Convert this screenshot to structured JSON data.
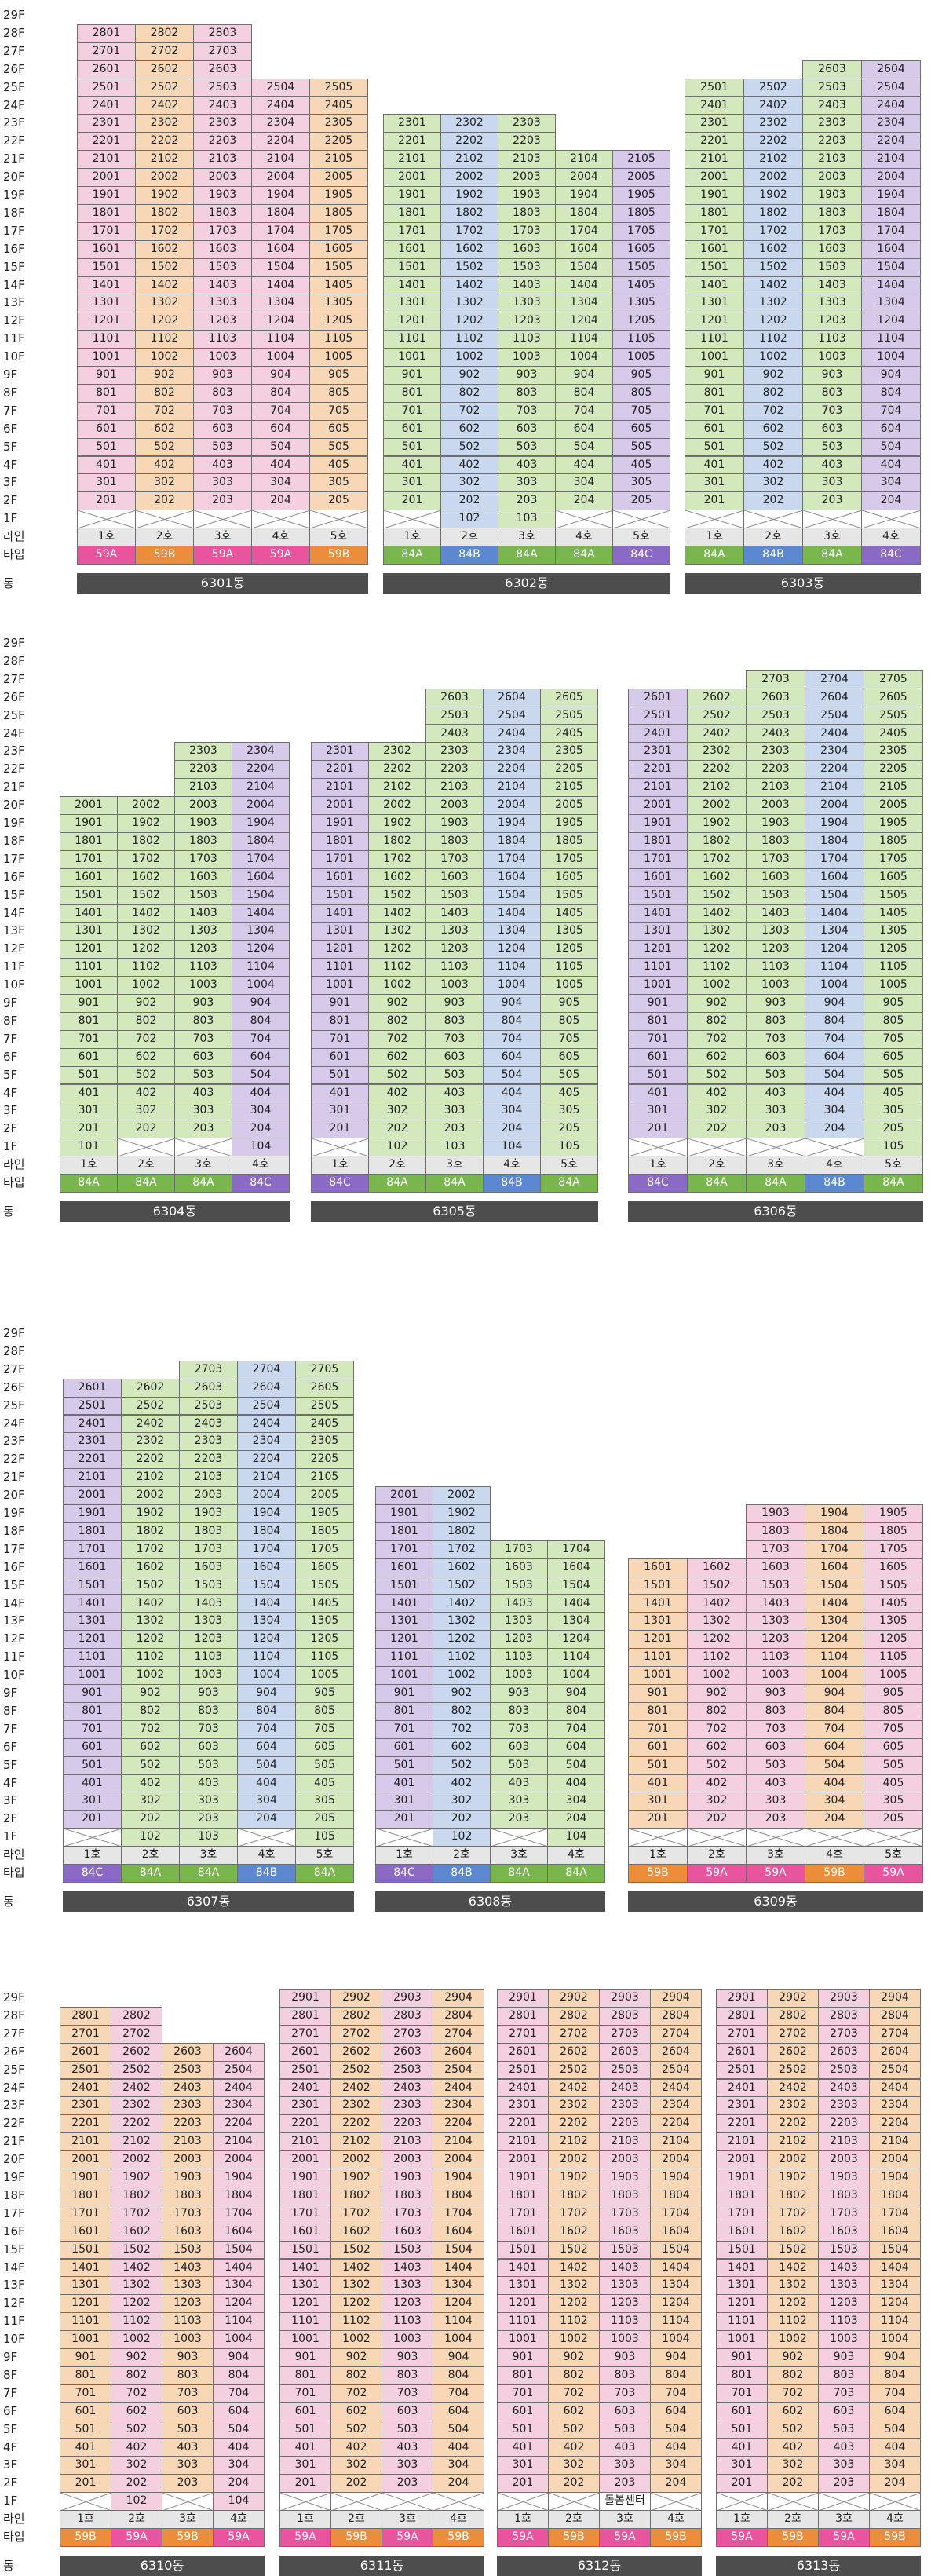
{
  "labels": {
    "line": "라인",
    "type": "타입",
    "dong": "동"
  },
  "colors": {
    "59A": "#f4cfe0",
    "59B": "#f8d7b7",
    "84A": "#d3e8bd",
    "84B": "#c9d8ef",
    "84C": "#d7c9ea",
    "t59A": "#e8559e",
    "t59B": "#ec8d3c",
    "t84A": "#79b64e",
    "t84B": "#5b88d1",
    "t84C": "#8a6ac4",
    "empty": "#ffffff"
  },
  "sections": [
    {
      "floor_labels": [
        "29F",
        "28F",
        "27F",
        "26F",
        "25F",
        "24F",
        "23F",
        "22F",
        "21F",
        "20F",
        "19F",
        "18F",
        "17F",
        "16F",
        "15F",
        "14F",
        "13F",
        "12F",
        "11F",
        "10F",
        "9F",
        "8F",
        "7F",
        "6F",
        "5F",
        "4F",
        "3F",
        "2F",
        "1F"
      ],
      "buildings": [
        {
          "name": "6301동",
          "line_labels": [
            "1호",
            "2호",
            "3호",
            "4호",
            "5호"
          ],
          "types": [
            "59A",
            "59B",
            "59A",
            "59A",
            "59B"
          ],
          "top_floors": [
            28,
            28,
            28,
            25,
            25
          ],
          "bottom_floor": 2,
          "first_floor": [
            null,
            null,
            null,
            null,
            null
          ]
        },
        {
          "name": "6302동",
          "line_labels": [
            "1호",
            "2호",
            "3호",
            "4호",
            "5호"
          ],
          "types": [
            "84A",
            "84B",
            "84A",
            "84A",
            "84C"
          ],
          "top_floors": [
            23,
            23,
            23,
            21,
            21
          ],
          "bottom_floor": 2,
          "first_floor": [
            null,
            "102",
            "103",
            null,
            null
          ]
        },
        {
          "name": "6303동",
          "line_labels": [
            "1호",
            "2호",
            "3호",
            "4호"
          ],
          "types": [
            "84A",
            "84B",
            "84A",
            "84C"
          ],
          "top_floors": [
            25,
            25,
            26,
            26
          ],
          "bottom_floor": 2,
          "first_floor": [
            null,
            null,
            null,
            null
          ]
        }
      ]
    },
    {
      "floor_labels": [
        "29F",
        "28F",
        "27F",
        "26F",
        "25F",
        "24F",
        "23F",
        "22F",
        "21F",
        "20F",
        "19F",
        "18F",
        "17F",
        "16F",
        "15F",
        "14F",
        "13F",
        "12F",
        "11F",
        "10F",
        "9F",
        "8F",
        "7F",
        "6F",
        "5F",
        "4F",
        "3F",
        "2F",
        "1F"
      ],
      "buildings": [
        {
          "name": "6304동",
          "line_labels": [
            "1호",
            "2호",
            "3호",
            "4호"
          ],
          "types": [
            "84A",
            "84A",
            "84A",
            "84C"
          ],
          "top_floors": [
            20,
            20,
            23,
            23
          ],
          "bottom_floor": 2,
          "first_floor": [
            "101",
            null,
            null,
            "104"
          ]
        },
        {
          "name": "6305동",
          "line_labels": [
            "1호",
            "2호",
            "3호",
            "4호",
            "5호"
          ],
          "types": [
            "84C",
            "84A",
            "84A",
            "84B",
            "84A"
          ],
          "top_floors": [
            23,
            23,
            26,
            26,
            26
          ],
          "bottom_floor": 2,
          "first_floor": [
            null,
            "102",
            "103",
            "104",
            "105"
          ]
        },
        {
          "name": "6306동",
          "line_labels": [
            "1호",
            "2호",
            "3호",
            "4호",
            "5호"
          ],
          "types": [
            "84C",
            "84A",
            "84A",
            "84B",
            "84A"
          ],
          "top_floors": [
            26,
            26,
            27,
            27,
            27
          ],
          "bottom_floor": 2,
          "first_floor": [
            null,
            null,
            null,
            null,
            "105"
          ]
        }
      ]
    },
    {
      "floor_labels": [
        "29F",
        "28F",
        "27F",
        "26F",
        "25F",
        "24F",
        "23F",
        "22F",
        "21F",
        "20F",
        "19F",
        "18F",
        "17F",
        "16F",
        "15F",
        "14F",
        "13F",
        "12F",
        "11F",
        "10F",
        "9F",
        "8F",
        "7F",
        "6F",
        "5F",
        "4F",
        "3F",
        "2F",
        "1F"
      ],
      "buildings": [
        {
          "name": "6307동",
          "line_labels": [
            "1호",
            "2호",
            "3호",
            "4호",
            "5호"
          ],
          "types": [
            "84C",
            "84A",
            "84A",
            "84B",
            "84A"
          ],
          "top_floors": [
            26,
            26,
            27,
            27,
            27
          ],
          "bottom_floor": 2,
          "first_floor": [
            null,
            "102",
            "103",
            null,
            "105"
          ]
        },
        {
          "name": "6308동",
          "line_labels": [
            "1호",
            "2호",
            "3호",
            "4호"
          ],
          "types": [
            "84C",
            "84B",
            "84A",
            "84A"
          ],
          "top_floors": [
            20,
            20,
            17,
            17
          ],
          "bottom_floor": 2,
          "first_floor": [
            null,
            "102",
            null,
            "104"
          ]
        },
        {
          "name": "6309동",
          "line_labels": [
            "1호",
            "2호",
            "3호",
            "4호",
            "5호"
          ],
          "types": [
            "59B",
            "59A",
            "59A",
            "59B",
            "59A"
          ],
          "top_floors": [
            16,
            16,
            19,
            19,
            19
          ],
          "bottom_floor": 2,
          "first_floor": [
            null,
            null,
            null,
            null,
            null
          ]
        }
      ]
    },
    {
      "floor_labels": [
        "29F",
        "28F",
        "27F",
        "26F",
        "25F",
        "24F",
        "23F",
        "22F",
        "21F",
        "20F",
        "19F",
        "18F",
        "17F",
        "16F",
        "15F",
        "14F",
        "13F",
        "12F",
        "11F",
        "10F",
        "9F",
        "8F",
        "7F",
        "6F",
        "5F",
        "4F",
        "3F",
        "2F",
        "1F"
      ],
      "buildings": [
        {
          "name": "6310동",
          "line_labels": [
            "1호",
            "2호",
            "3호",
            "4호"
          ],
          "types": [
            "59B",
            "59A",
            "59B",
            "59A"
          ],
          "top_floors": [
            28,
            28,
            26,
            26
          ],
          "bottom_floor": 2,
          "first_floor": [
            null,
            "102",
            null,
            "104"
          ]
        },
        {
          "name": "6311동",
          "line_labels": [
            "1호",
            "2호",
            "3호",
            "4호"
          ],
          "types": [
            "59A",
            "59B",
            "59A",
            "59B"
          ],
          "top_floors": [
            29,
            29,
            29,
            29
          ],
          "bottom_floor": 2,
          "first_floor": [
            null,
            null,
            null,
            null
          ]
        },
        {
          "name": "6312동",
          "line_labels": [
            "1호",
            "2호",
            "3호",
            "4호"
          ],
          "types": [
            "59A",
            "59B",
            "59A",
            "59B"
          ],
          "top_floors": [
            29,
            29,
            29,
            29
          ],
          "bottom_floor": 2,
          "first_floor": [
            null,
            null,
            "돌봄센터",
            null
          ]
        },
        {
          "name": "6313동",
          "line_labels": [
            "1호",
            "2호",
            "3호",
            "4호"
          ],
          "types": [
            "59A",
            "59B",
            "59A",
            "59B"
          ],
          "top_floors": [
            29,
            29,
            29,
            29
          ],
          "bottom_floor": 2,
          "first_floor": [
            null,
            null,
            null,
            null
          ]
        }
      ]
    }
  ]
}
